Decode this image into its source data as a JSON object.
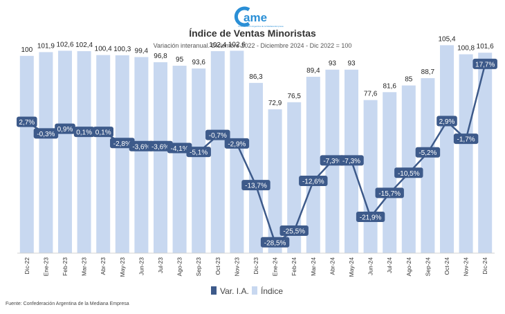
{
  "brand": {
    "logo_text": "ame",
    "logo_subtitle": "Confederación Argentina de la Mediana Empresa",
    "color": "#2a8fd6"
  },
  "header": {
    "title": "Índice de Ventas Minoristas",
    "subtitle": "Variación interanual. Diciembre 2022 - Diciembre 2024 - Dic 2022 = 100"
  },
  "footer": {
    "source": "Fuente: Confederación Argentina de la Mediana Empresa"
  },
  "chart_data": {
    "type": "bar",
    "categories": [
      "Dic-22",
      "Ene-23",
      "Feb-23",
      "Mar-23",
      "Abr-23",
      "May-23",
      "Jun-23",
      "Jul-23",
      "Ago-23",
      "Sep-23",
      "Oct-23",
      "Nov-23",
      "Dic-23",
      "Ene-24",
      "Feb-24",
      "Mar-24",
      "Abr-24",
      "May-24",
      "Jun-24",
      "Jul-24",
      "Ago-24",
      "Sep-24",
      "Oct-24",
      "Nov-24",
      "Dic-24"
    ],
    "series": [
      {
        "name": "Índice",
        "type": "bar",
        "color": "#c8d8f0",
        "values": [
          100,
          101.9,
          102.6,
          102.4,
          100.4,
          100.3,
          99.4,
          96.8,
          95,
          93.6,
          102.4,
          102.6,
          86.3,
          72.9,
          76.5,
          89.4,
          93,
          93,
          77.6,
          81.6,
          85,
          88.7,
          105.4,
          100.8,
          101.6
        ],
        "labels": [
          "100",
          "101,9",
          "102,6",
          "102,4",
          "100,4",
          "100,3",
          "99,4",
          "96,8",
          "95",
          "93,6",
          "102,4",
          "102,6",
          "86,3",
          "72,9",
          "76,5",
          "89,4",
          "93",
          "93",
          "77,6",
          "81,6",
          "85",
          "88,7",
          "105,4",
          "100,8",
          "101,6"
        ]
      },
      {
        "name": "Var. I.A.",
        "type": "line",
        "color": "#3d5a8a",
        "values": [
          2.7,
          -0.3,
          0.9,
          0.1,
          0.1,
          -2.8,
          -3.6,
          -3.6,
          -4.1,
          -5.1,
          -0.7,
          -2.9,
          -13.7,
          -28.5,
          -25.5,
          -12.6,
          -7.3,
          -7.3,
          -21.9,
          -15.7,
          -10.5,
          -5.2,
          2.9,
          -1.7,
          17.7
        ],
        "labels": [
          "2,7%",
          "-0,3%",
          "0,9%",
          "0,1%",
          "0,1%",
          "-2,8%",
          "-3,6%",
          "-3,6%",
          "-4,1%",
          "-5,1%",
          "-0,7%",
          "-2,9%",
          "-13,7%",
          "-28,5%",
          "-25,5%",
          "-12,6%",
          "-7,3%",
          "-7,3%",
          "-21,9%",
          "-15,7%",
          "-10,5%",
          "-5,2%",
          "2,9%",
          "-1,7%",
          "17,7%"
        ]
      }
    ],
    "bar_axis_range": [
      0,
      115
    ],
    "line_axis_range": [
      -40,
      20
    ],
    "grid": false,
    "legend_placement": "bottom"
  }
}
